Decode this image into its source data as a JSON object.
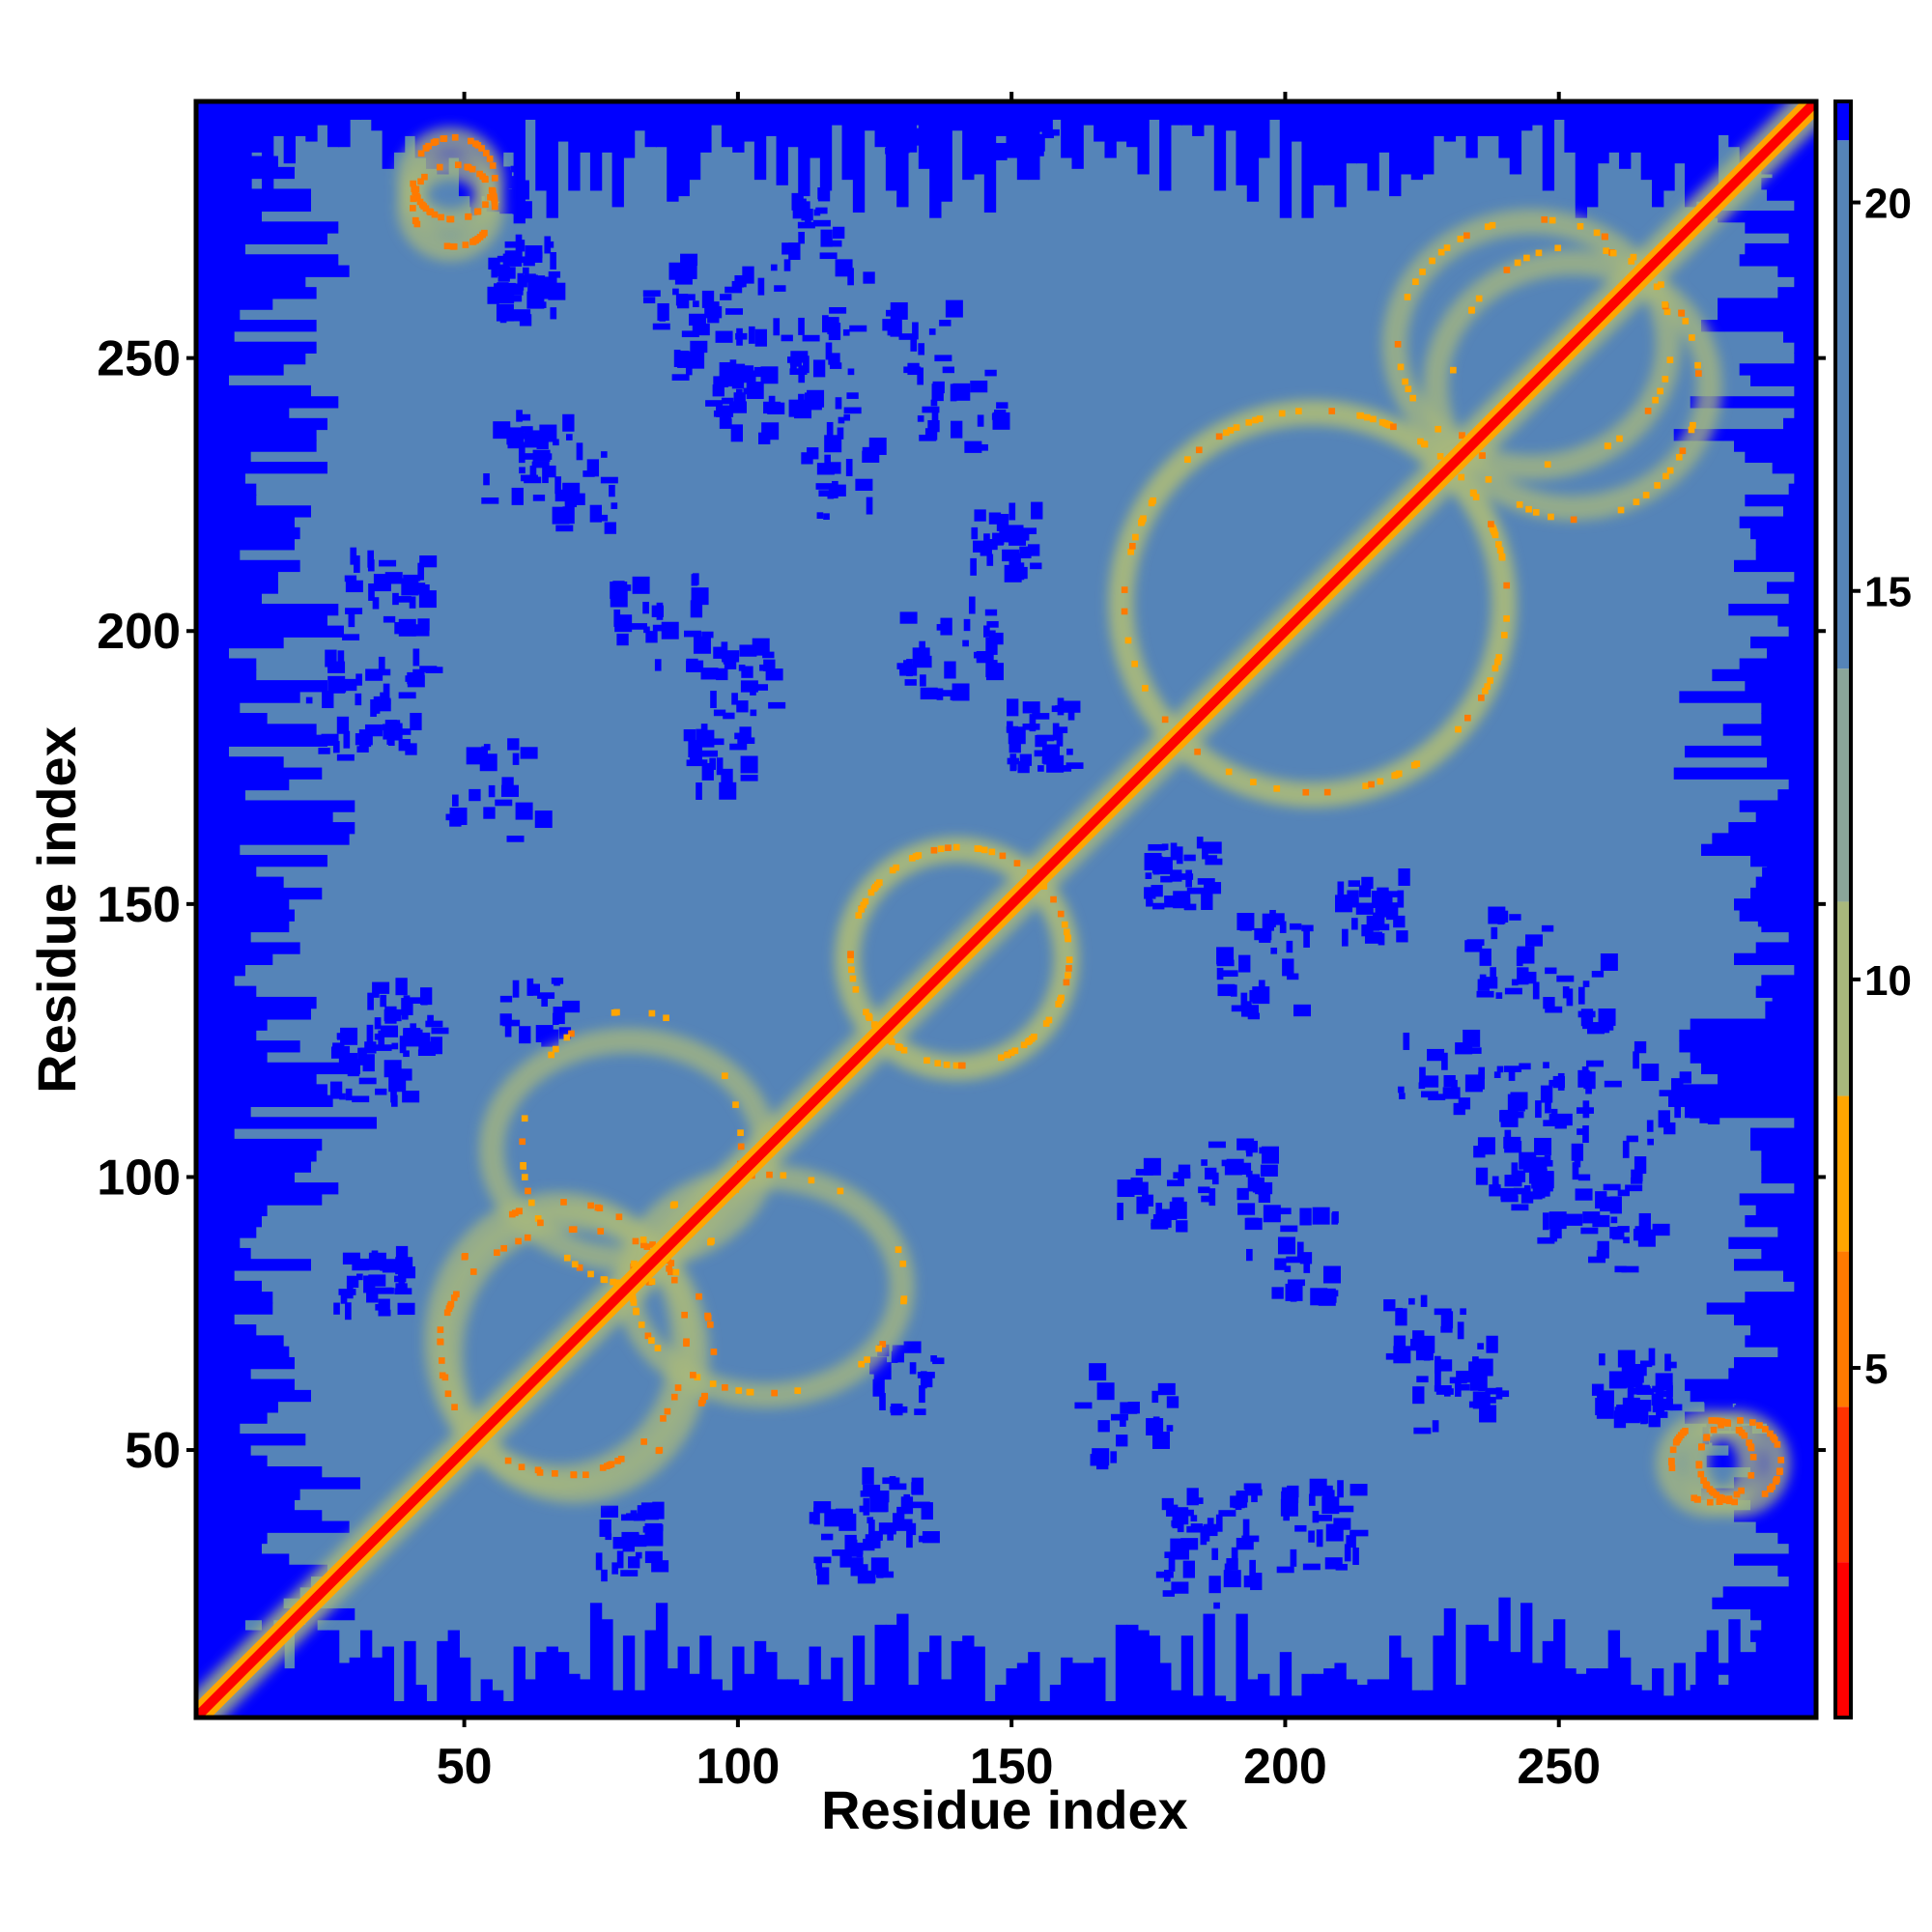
{
  "chart_data": {
    "type": "heatmap",
    "title": "",
    "xlabel": "Residue index",
    "ylabel": "Residue index",
    "xlim": [
      1,
      297
    ],
    "ylim": [
      1,
      297
    ],
    "x_ticks": [
      50,
      100,
      150,
      200,
      250
    ],
    "y_ticks": [
      50,
      100,
      150,
      200,
      250
    ],
    "x_tick_labels": [
      "50",
      "100",
      "150",
      "200",
      "250"
    ],
    "y_tick_labels": [
      "50",
      "100",
      "150",
      "200",
      "250"
    ],
    "colorbar": {
      "range": [
        0.5,
        21.3
      ],
      "ticks": [
        5,
        10,
        15,
        20
      ],
      "tick_labels": [
        "5",
        "10",
        "15",
        "20"
      ],
      "segments": [
        {
          "from": 0.5,
          "to": 2.5,
          "color": "#ff0000"
        },
        {
          "from": 2.5,
          "to": 4.5,
          "color": "#ff3300"
        },
        {
          "from": 4.5,
          "to": 6.5,
          "color": "#ff7a00"
        },
        {
          "from": 6.5,
          "to": 8.5,
          "color": "#ffa500"
        },
        {
          "from": 8.5,
          "to": 11.0,
          "color": "#a8b87c"
        },
        {
          "from": 11.0,
          "to": 14.0,
          "color": "#8aa59a"
        },
        {
          "from": 14.0,
          "to": 20.8,
          "color": "#5584b8"
        },
        {
          "from": 20.8,
          "to": 21.3,
          "color": "#0000ff"
        }
      ]
    },
    "cmap": [
      "#ff0000",
      "#ff7a00",
      "#ffa500",
      "#a8b87c",
      "#5584b8",
      "#0000ff"
    ],
    "matrix_description": "Symmetric residue-residue distance map; diagonal distances ~0 (red), short-range contacts orange, medium distances olive-green, distant pairs steel-blue, very far pairs blue",
    "contact_features": [
      {
        "x_range": [
          1,
          297
        ],
        "y_range": [
          1,
          297
        ],
        "kind": "diagonal",
        "value": 1
      },
      {
        "x_range": [
          45,
          90
        ],
        "y_range": [
          45,
          95
        ],
        "kind": "antiparallel-sheet",
        "value": 5
      },
      {
        "x_range": [
          80,
          130
        ],
        "y_range": [
          60,
          100
        ],
        "kind": "contact-cluster",
        "value": 7
      },
      {
        "x_range": [
          120,
          160
        ],
        "y_range": [
          120,
          160
        ],
        "kind": "contact-cluster",
        "value": 7
      },
      {
        "x_range": [
          170,
          240
        ],
        "y_range": [
          170,
          240
        ],
        "kind": "contact-cluster",
        "value": 7
      },
      {
        "x_range": [
          220,
          270
        ],
        "y_range": [
          230,
          275
        ],
        "kind": "contact-cluster",
        "value": 7
      },
      {
        "x_range": [
          40,
          55
        ],
        "y_range": [
          275,
          290
        ],
        "kind": "contact-cluster",
        "value": 6
      },
      {
        "x_range": [
          270,
          285
        ],
        "y_range": [
          40,
          55
        ],
        "kind": "contact-cluster",
        "value": 6
      }
    ]
  }
}
